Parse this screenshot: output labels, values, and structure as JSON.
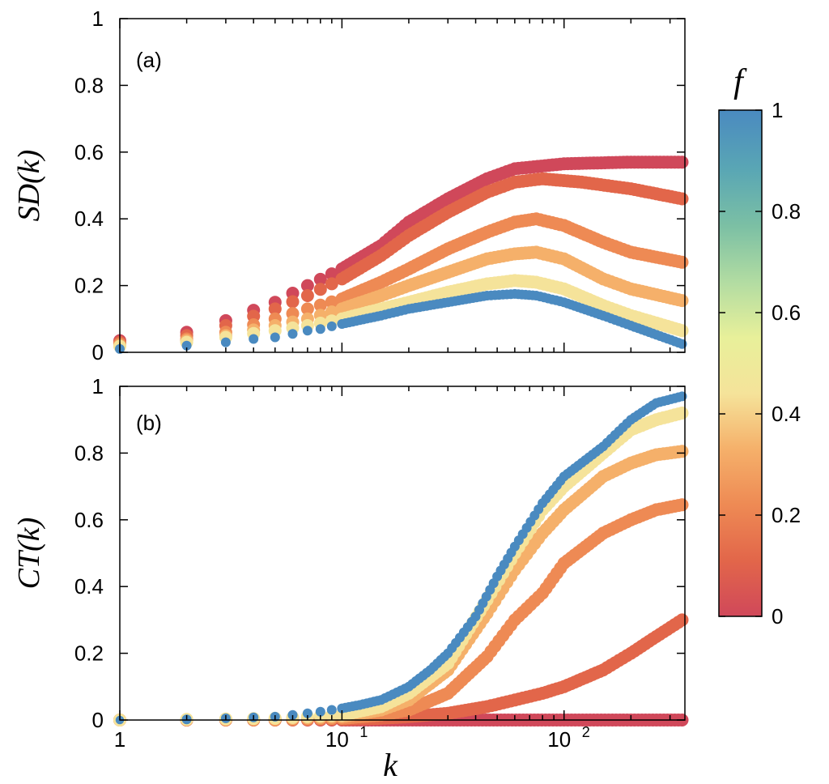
{
  "chart_data": {
    "type": "scatter",
    "xscale": "log",
    "xlim": [
      1,
      350
    ],
    "xlabel": "k",
    "xticks": [
      {
        "value": 1,
        "base": "1",
        "exp": ""
      },
      {
        "value": 10,
        "base": "10",
        "exp": "1"
      },
      {
        "value": 100,
        "base": "10",
        "exp": "2"
      }
    ],
    "panels": [
      {
        "id": "a",
        "label": "(a)",
        "ylabel": "SD(k)",
        "ylim": [
          0,
          1
        ],
        "yticks": [
          "0",
          "0.2",
          "0.4",
          "0.6",
          "0.8",
          "1"
        ],
        "series": [
          {
            "f": 0.0,
            "color": "#d0485a",
            "points": [
              [
                1,
                0.035
              ],
              [
                2,
                0.06
              ],
              [
                3,
                0.095
              ],
              [
                5,
                0.15
              ],
              [
                7,
                0.2
              ],
              [
                10,
                0.25
              ],
              [
                15,
                0.32
              ],
              [
                20,
                0.39
              ],
              [
                30,
                0.46
              ],
              [
                45,
                0.52
              ],
              [
                60,
                0.55
              ],
              [
                100,
                0.565
              ],
              [
                200,
                0.57
              ],
              [
                340,
                0.57
              ]
            ]
          },
          {
            "f": 0.2,
            "color": "#e2664a",
            "points": [
              [
                1,
                0.03
              ],
              [
                2,
                0.05
              ],
              [
                3,
                0.08
              ],
              [
                5,
                0.13
              ],
              [
                7,
                0.17
              ],
              [
                10,
                0.22
              ],
              [
                15,
                0.29
              ],
              [
                20,
                0.35
              ],
              [
                30,
                0.42
              ],
              [
                45,
                0.48
              ],
              [
                60,
                0.51
              ],
              [
                80,
                0.52
              ],
              [
                120,
                0.51
              ],
              [
                200,
                0.49
              ],
              [
                340,
                0.46
              ]
            ]
          },
          {
            "f": 0.4,
            "color": "#ee8a54",
            "points": [
              [
                1,
                0.025
              ],
              [
                2,
                0.04
              ],
              [
                3,
                0.06
              ],
              [
                5,
                0.1
              ],
              [
                7,
                0.13
              ],
              [
                10,
                0.16
              ],
              [
                15,
                0.21
              ],
              [
                20,
                0.25
              ],
              [
                30,
                0.31
              ],
              [
                45,
                0.36
              ],
              [
                60,
                0.39
              ],
              [
                75,
                0.4
              ],
              [
                100,
                0.38
              ],
              [
                150,
                0.33
              ],
              [
                200,
                0.3
              ],
              [
                340,
                0.27
              ]
            ]
          },
          {
            "f": 0.6,
            "color": "#f5b06a",
            "points": [
              [
                1,
                0.02
              ],
              [
                2,
                0.035
              ],
              [
                3,
                0.05
              ],
              [
                5,
                0.08
              ],
              [
                7,
                0.1
              ],
              [
                10,
                0.13
              ],
              [
                15,
                0.17
              ],
              [
                20,
                0.2
              ],
              [
                30,
                0.24
              ],
              [
                45,
                0.28
              ],
              [
                60,
                0.295
              ],
              [
                75,
                0.3
              ],
              [
                100,
                0.28
              ],
              [
                150,
                0.22
              ],
              [
                200,
                0.19
              ],
              [
                340,
                0.155
              ]
            ]
          },
          {
            "f": 0.8,
            "color": "#f5e39a",
            "points": [
              [
                1,
                0.018
              ],
              [
                2,
                0.03
              ],
              [
                3,
                0.045
              ],
              [
                5,
                0.065
              ],
              [
                7,
                0.08
              ],
              [
                10,
                0.1
              ],
              [
                15,
                0.13
              ],
              [
                20,
                0.15
              ],
              [
                30,
                0.18
              ],
              [
                45,
                0.205
              ],
              [
                60,
                0.215
              ],
              [
                75,
                0.21
              ],
              [
                100,
                0.19
              ],
              [
                150,
                0.14
              ],
              [
                200,
                0.11
              ],
              [
                340,
                0.065
              ]
            ]
          },
          {
            "f": 1.0,
            "color": "#4a8ac0",
            "points": [
              [
                1,
                0.01
              ],
              [
                2,
                0.02
              ],
              [
                3,
                0.03
              ],
              [
                4,
                0.04
              ],
              [
                5,
                0.045
              ],
              [
                6,
                0.055
              ],
              [
                7,
                0.065
              ],
              [
                8,
                0.07
              ],
              [
                10,
                0.085
              ],
              [
                15,
                0.11
              ],
              [
                20,
                0.13
              ],
              [
                30,
                0.15
              ],
              [
                45,
                0.17
              ],
              [
                60,
                0.175
              ],
              [
                75,
                0.17
              ],
              [
                100,
                0.15
              ],
              [
                150,
                0.11
              ],
              [
                200,
                0.08
              ],
              [
                340,
                0.025
              ]
            ]
          }
        ]
      },
      {
        "id": "b",
        "label": "(b)",
        "ylabel": "CT(k)",
        "ylim": [
          0,
          1
        ],
        "yticks": [
          "0",
          "0.2",
          "0.4",
          "0.6",
          "0.8",
          "1"
        ],
        "series": [
          {
            "f": 0.0,
            "color": "#d0485a",
            "points": [
              [
                1,
                0.0
              ],
              [
                2,
                0.0
              ],
              [
                5,
                0.0
              ],
              [
                10,
                0.0
              ],
              [
                20,
                0.0
              ],
              [
                50,
                0.0
              ],
              [
                100,
                0.0
              ],
              [
                200,
                0.0
              ],
              [
                340,
                0.0
              ]
            ]
          },
          {
            "f": 0.2,
            "color": "#e2664a",
            "points": [
              [
                1,
                0.0
              ],
              [
                5,
                0.0
              ],
              [
                10,
                0.002
              ],
              [
                15,
                0.005
              ],
              [
                20,
                0.01
              ],
              [
                30,
                0.02
              ],
              [
                45,
                0.04
              ],
              [
                60,
                0.06
              ],
              [
                80,
                0.08
              ],
              [
                100,
                0.1
              ],
              [
                150,
                0.15
              ],
              [
                200,
                0.2
              ],
              [
                260,
                0.25
              ],
              [
                340,
                0.3
              ]
            ]
          },
          {
            "f": 0.4,
            "color": "#ee8a54",
            "points": [
              [
                1,
                0.0
              ],
              [
                5,
                0.0
              ],
              [
                10,
                0.005
              ],
              [
                15,
                0.015
              ],
              [
                20,
                0.03
              ],
              [
                30,
                0.08
              ],
              [
                45,
                0.19
              ],
              [
                60,
                0.3
              ],
              [
                80,
                0.38
              ],
              [
                100,
                0.47
              ],
              [
                150,
                0.56
              ],
              [
                200,
                0.6
              ],
              [
                260,
                0.63
              ],
              [
                340,
                0.645
              ]
            ]
          },
          {
            "f": 0.6,
            "color": "#f5b06a",
            "points": [
              [
                1,
                0.0
              ],
              [
                5,
                0.003
              ],
              [
                10,
                0.01
              ],
              [
                15,
                0.03
              ],
              [
                20,
                0.06
              ],
              [
                30,
                0.15
              ],
              [
                45,
                0.32
              ],
              [
                60,
                0.45
              ],
              [
                80,
                0.56
              ],
              [
                100,
                0.63
              ],
              [
                150,
                0.73
              ],
              [
                200,
                0.77
              ],
              [
                260,
                0.795
              ],
              [
                340,
                0.805
              ]
            ]
          },
          {
            "f": 0.8,
            "color": "#f5e39a",
            "points": [
              [
                1,
                0.0
              ],
              [
                5,
                0.005
              ],
              [
                10,
                0.015
              ],
              [
                15,
                0.04
              ],
              [
                20,
                0.08
              ],
              [
                30,
                0.17
              ],
              [
                45,
                0.36
              ],
              [
                60,
                0.5
              ],
              [
                80,
                0.63
              ],
              [
                100,
                0.7
              ],
              [
                150,
                0.8
              ],
              [
                200,
                0.87
              ],
              [
                260,
                0.9
              ],
              [
                340,
                0.92
              ]
            ]
          },
          {
            "f": 1.0,
            "color": "#4a8ac0",
            "points": [
              [
                1,
                0.0
              ],
              [
                2,
                0.002
              ],
              [
                3,
                0.005
              ],
              [
                4,
                0.008
              ],
              [
                5,
                0.01
              ],
              [
                6,
                0.015
              ],
              [
                7,
                0.02
              ],
              [
                8,
                0.025
              ],
              [
                10,
                0.035
              ],
              [
                12,
                0.045
              ],
              [
                15,
                0.06
              ],
              [
                20,
                0.1
              ],
              [
                25,
                0.15
              ],
              [
                30,
                0.2
              ],
              [
                40,
                0.31
              ],
              [
                50,
                0.43
              ],
              [
                60,
                0.52
              ],
              [
                80,
                0.65
              ],
              [
                100,
                0.73
              ],
              [
                150,
                0.82
              ],
              [
                200,
                0.9
              ],
              [
                260,
                0.95
              ],
              [
                340,
                0.97
              ]
            ]
          }
        ]
      }
    ],
    "colorbar": {
      "title": "f",
      "range": [
        0,
        1
      ],
      "ticks": [
        "0",
        "0.2",
        "0.4",
        "0.6",
        "0.8",
        "1"
      ],
      "colors": [
        "#d0485a",
        "#e2664a",
        "#ee8a54",
        "#f5b06a",
        "#f5e39a",
        "#e8f09a",
        "#b2dca2",
        "#7cc0a4",
        "#5aa7b4",
        "#4a8ac0"
      ]
    }
  }
}
